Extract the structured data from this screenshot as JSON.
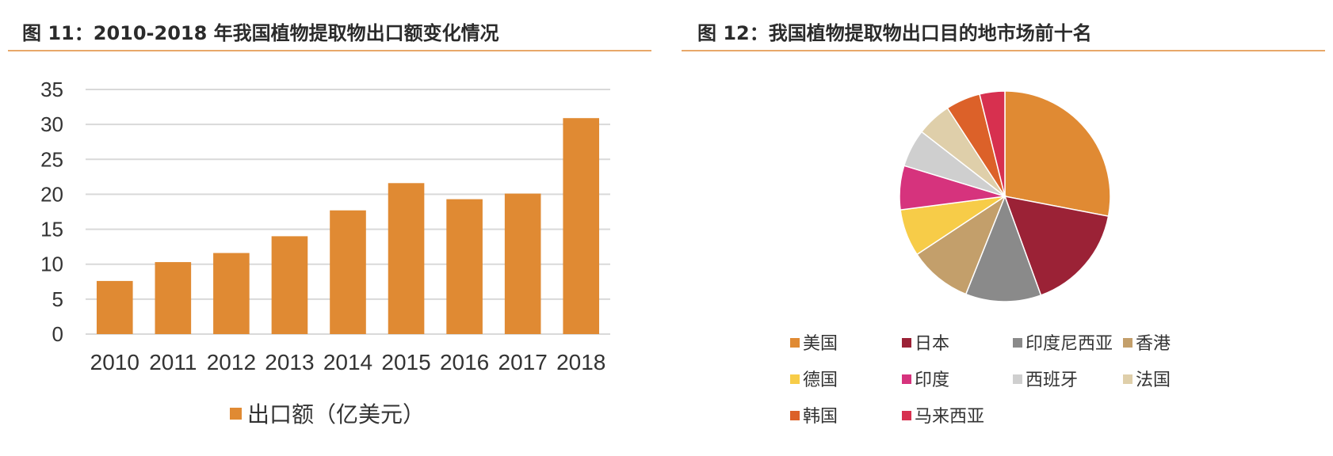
{
  "left": {
    "caption": "图 11：2010-2018 年我国植物提取物出口额变化情况",
    "legend_label": "出口额（亿美元）"
  },
  "right": {
    "caption": "图 12：我国植物提取物出口目的地市场前十名"
  },
  "colors": {
    "bar": "#e08a33",
    "grid": "#d9d9d9",
    "rule": "#e8a86a"
  },
  "chart_data": [
    {
      "type": "bar",
      "categories": [
        "2010",
        "2011",
        "2012",
        "2013",
        "2014",
        "2015",
        "2016",
        "2017",
        "2018"
      ],
      "series": [
        {
          "name": "出口额（亿美元）",
          "values": [
            7.6,
            10.3,
            11.6,
            14.0,
            17.7,
            21.6,
            19.3,
            20.1,
            30.9
          ]
        }
      ],
      "ylim": [
        0,
        35
      ],
      "yticks": [
        0,
        5,
        10,
        15,
        20,
        25,
        30,
        35
      ],
      "grid": true,
      "legend_position": "bottom"
    },
    {
      "type": "pie",
      "labels": [
        "美国",
        "日本",
        "印度尼西亚",
        "香港",
        "德国",
        "印度",
        "西班牙",
        "法国",
        "韩国",
        "马来西亚"
      ],
      "values": [
        29.0,
        17.0,
        12.0,
        10.0,
        7.5,
        7.0,
        6.0,
        5.5,
        5.5,
        4.0
      ],
      "colors": [
        "#e08a33",
        "#9b2236",
        "#8a8a8a",
        "#c39f6b",
        "#f7cc48",
        "#d6337d",
        "#cfcfcf",
        "#dfcfaa",
        "#dc6129",
        "#d7304f"
      ],
      "legend_position": "bottom"
    }
  ]
}
